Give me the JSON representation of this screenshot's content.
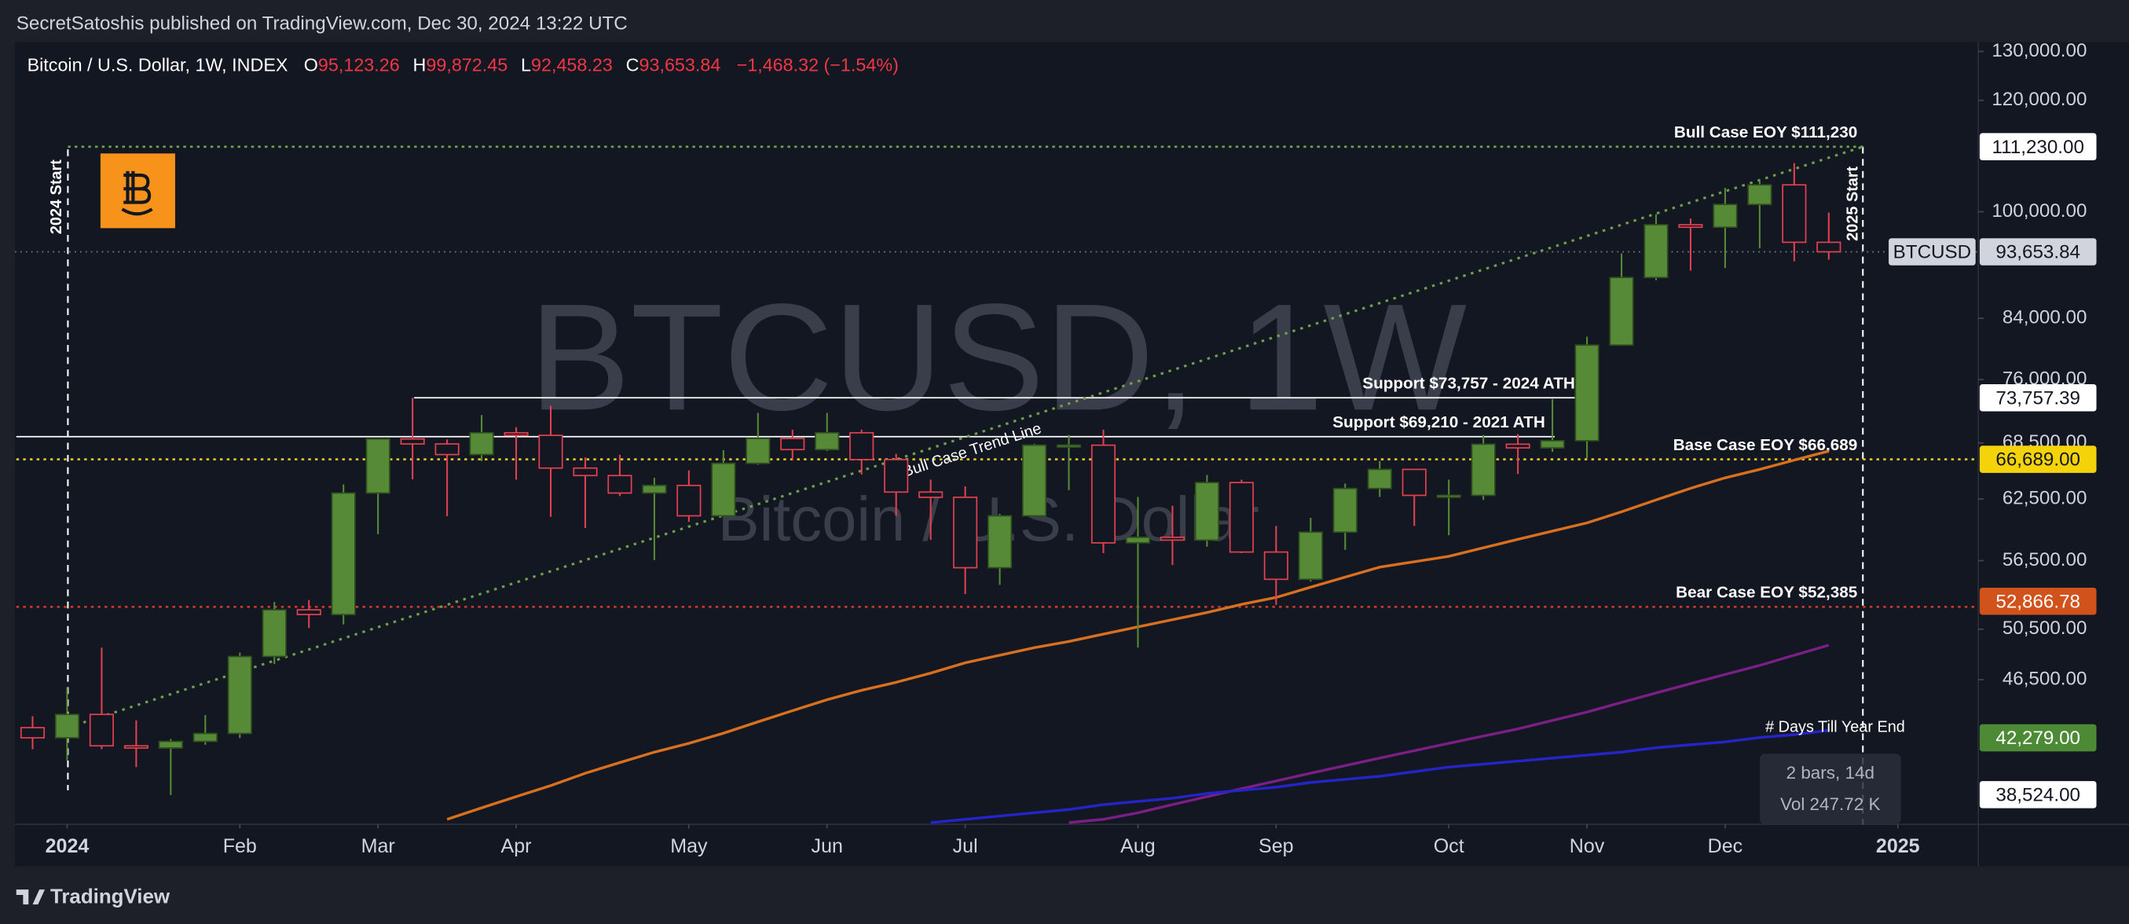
{
  "header": {
    "publisher": "SecretSatoshis published on TradingView.com, Dec 30, 2024 13:22 UTC",
    "brand": "TradingView"
  },
  "chart_data": {
    "type": "candlestick",
    "title": "Bitcoin / U.S. Dollar, 1W, INDEX",
    "legend_ohlc": {
      "o_label": "O",
      "o": "95,123.26",
      "h_label": "H",
      "h": "99,872.45",
      "l_label": "L",
      "l": "92,458.23",
      "c_label": "C",
      "c": "93,653.84",
      "change": "−1,468.32 (−1.54%)"
    },
    "watermark": "BTCUSD, 1W",
    "watermark_subtitle": "Bitcoin / U.S. Dollar",
    "log_scale": true,
    "grid": false,
    "up_color": "#578a37",
    "down_color": "#e0404f",
    "ylim": [
      36700,
      131700
    ],
    "yticks": [
      {
        "value": 130000,
        "label": "130,000.00"
      },
      {
        "value": 120000,
        "label": "120,000.00"
      },
      {
        "value": 100000,
        "label": "100,000.00"
      },
      {
        "value": 84000,
        "label": "84,000.00"
      },
      {
        "value": 76000,
        "label": "76,000.00"
      },
      {
        "value": 68500,
        "label": "68,500.00"
      },
      {
        "value": 62500,
        "label": "62,500.00"
      },
      {
        "value": 56500,
        "label": "56,500.00"
      },
      {
        "value": 50500,
        "label": "50,500.00"
      },
      {
        "value": 46500,
        "label": "46,500.00"
      }
    ],
    "xticks": [
      {
        "value": 1,
        "label": "2024"
      },
      {
        "value": 6,
        "label": "Feb"
      },
      {
        "value": 10,
        "label": "Mar"
      },
      {
        "value": 14,
        "label": "Apr"
      },
      {
        "value": 19,
        "label": "May"
      },
      {
        "value": 23,
        "label": "Jun"
      },
      {
        "value": 27,
        "label": "Jul"
      },
      {
        "value": 32,
        "label": "Aug"
      },
      {
        "value": 36,
        "label": "Sep"
      },
      {
        "value": 41,
        "label": "Oct"
      },
      {
        "value": 45,
        "label": "Nov"
      },
      {
        "value": 49,
        "label": "Dec"
      },
      {
        "value": 54,
        "label": "2025"
      }
    ],
    "open": [
      42990,
      42280,
      43930,
      41730,
      41580,
      42030,
      42580,
      48300,
      52130,
      51730,
      63110,
      68950,
      68390,
      67210,
      69650,
      69360,
      65740,
      64940,
      63110,
      63900,
      60800,
      66250,
      69000,
      67760,
      69650,
      66660,
      63210,
      62670,
      55850,
      60800,
      68250,
      68250,
      58170,
      58700,
      58430,
      64200,
      57300,
      54800,
      59200,
      63580,
      65600,
      62870,
      62870,
      68360,
      67950,
      68750,
      80400,
      89800,
      97900,
      97500,
      101200,
      104500,
      95123.26
    ],
    "high": [
      43800,
      45900,
      49000,
      43500,
      42200,
      43880,
      48600,
      52800,
      52980,
      64000,
      69000,
      73750,
      68900,
      71700,
      70300,
      72800,
      66900,
      67200,
      64700,
      65500,
      67700,
      71950,
      70000,
      71950,
      70000,
      67300,
      64500,
      63800,
      61000,
      68400,
      69400,
      70000,
      62700,
      61800,
      65000,
      64500,
      59800,
      60600,
      64100,
      66500,
      65600,
      64500,
      69400,
      69500,
      73600,
      81500,
      93400,
      99600,
      98900,
      104000,
      105200,
      108300,
      99872.45
    ],
    "low": [
      41500,
      40750,
      41500,
      40300,
      38500,
      41800,
      42260,
      47700,
      50600,
      50900,
      59000,
      64550,
      60760,
      66500,
      64500,
      60700,
      59600,
      62800,
      56550,
      60200,
      60800,
      66100,
      66600,
      67600,
      65050,
      60800,
      58450,
      53500,
      54300,
      60800,
      63400,
      57200,
      49000,
      56100,
      57800,
      57200,
      52550,
      54600,
      57500,
      62700,
      59800,
      58900,
      62400,
      65100,
      67500,
      66800,
      80300,
      89400,
      90800,
      91200,
      94200,
      92200,
      92458.23
    ],
    "close": [
      42280,
      43930,
      41730,
      41580,
      42030,
      42580,
      48300,
      52130,
      51730,
      63110,
      68950,
      68390,
      67210,
      69650,
      69360,
      65740,
      64940,
      63110,
      63900,
      60800,
      66250,
      69000,
      67760,
      69650,
      66660,
      63210,
      62670,
      55850,
      60800,
      68250,
      68260,
      58170,
      58700,
      58430,
      64200,
      57300,
      54800,
      59200,
      63580,
      65600,
      62870,
      62880,
      68360,
      67950,
      68750,
      80400,
      89800,
      97900,
      97500,
      101200,
      104500,
      95123,
      93653.84
    ],
    "moving_averages": [
      {
        "color": "#d8701f",
        "values": [
          null,
          null,
          null,
          null,
          null,
          null,
          null,
          null,
          null,
          null,
          null,
          null,
          37000,
          37700,
          38400,
          39100,
          39900,
          40600,
          41300,
          41900,
          42600,
          43400,
          44200,
          45000,
          45700,
          46300,
          47000,
          47800,
          48400,
          49000,
          49500,
          50100,
          50700,
          51300,
          51900,
          52600,
          53200,
          54100,
          55000,
          55900,
          56400,
          56900,
          57700,
          58500,
          59300,
          60100,
          61200,
          62400,
          63600,
          64700,
          65600,
          66600,
          67600
        ]
      },
      {
        "color": "#7b1f86",
        "values": [
          null,
          null,
          null,
          null,
          null,
          null,
          null,
          null,
          null,
          null,
          null,
          null,
          null,
          null,
          null,
          null,
          null,
          null,
          null,
          null,
          null,
          null,
          null,
          null,
          null,
          null,
          null,
          null,
          null,
          null,
          36800,
          37000,
          37400,
          37900,
          38400,
          38900,
          39400,
          39900,
          40400,
          40900,
          41400,
          41900,
          42400,
          42900,
          43500,
          44100,
          44800,
          45500,
          46200,
          46900,
          47600,
          48400,
          49200
        ]
      },
      {
        "color": "#2424c8",
        "values": [
          null,
          null,
          null,
          null,
          null,
          null,
          null,
          null,
          null,
          null,
          null,
          null,
          null,
          null,
          null,
          null,
          null,
          null,
          null,
          null,
          null,
          null,
          null,
          null,
          null,
          null,
          36800,
          37000,
          37200,
          37400,
          37600,
          37900,
          38100,
          38300,
          38600,
          38800,
          39000,
          39300,
          39500,
          39700,
          40000,
          40300,
          40500,
          40700,
          40900,
          41100,
          41300,
          41600,
          41800,
          42000,
          42300,
          42500,
          42800
        ]
      }
    ],
    "levels": [
      {
        "name": "Bull Case EOY $111,230",
        "value": 111230,
        "color": "#6e9f4b",
        "style": "dotted"
      },
      {
        "name": "Support $73,757 - 2024 ATH",
        "value": 73757,
        "color": "#ffffff",
        "style": "solid"
      },
      {
        "name": "Support $69,210 - 2021 ATH",
        "value": 69210,
        "color": "#ffffff",
        "style": "solid"
      },
      {
        "name": "Base Case EOY $66,689",
        "value": 66689,
        "color": "#d6c22a",
        "style": "dotted"
      },
      {
        "name": "Bear Case EOY $52,385",
        "value": 52385,
        "color": "#c0392b",
        "style": "dotted"
      }
    ],
    "trend_line": {
      "name": "Bull Case Trend Line",
      "values": [
        43000,
        111230
      ],
      "color": "#6e9f4b"
    },
    "markers": [
      "2024 Start",
      "2025 Start"
    ],
    "indicator_label": "# Days Till Year End",
    "price_badges": [
      {
        "value": 111230,
        "label": "111,230.00",
        "color": "#ffffff",
        "text_color": "#131722"
      },
      {
        "value": 93653.84,
        "label": "93,653.84",
        "tag": "BTCUSD",
        "color": "#d1d4dc",
        "text_color": "#131722"
      },
      {
        "value": 73757.39,
        "label": "73,757.39",
        "color": "#ffffff",
        "text_color": "#131722"
      },
      {
        "value": 66689,
        "label": "66,689.00",
        "color": "#f4d30a",
        "text_color": "#131722"
      },
      {
        "value": 52866.78,
        "label": "52,866.78",
        "color": "#d2521c",
        "text_color": "#ffffff"
      },
      {
        "value": 42279,
        "label": "42,279.00",
        "color": "#4c8a36",
        "text_color": "#ffffff"
      },
      {
        "value": 38524,
        "label": "38,524.00",
        "color": "#ffffff",
        "text_color": "#131722"
      }
    ],
    "tooltip": {
      "range": "2 bars, 14d",
      "volume": "Vol 247.72 K"
    }
  }
}
